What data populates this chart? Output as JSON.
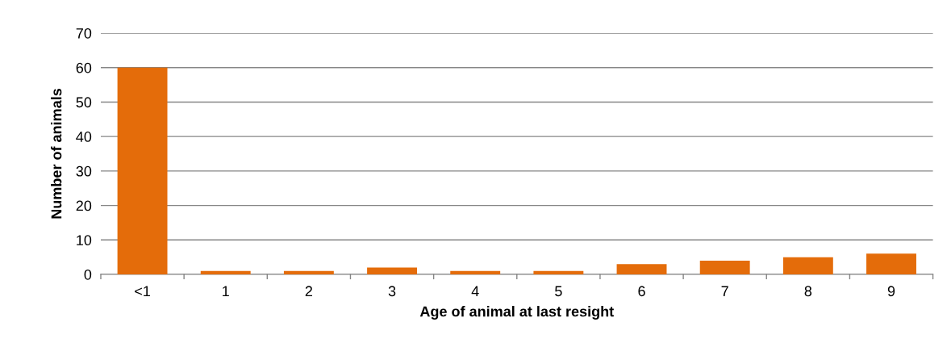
{
  "chart_data": {
    "type": "bar",
    "xlabel": "Age of animal at last resight",
    "ylabel": "Number of animals",
    "categories": [
      "<1",
      "1",
      "2",
      "3",
      "4",
      "5",
      "6",
      "7",
      "8",
      "9"
    ],
    "values": [
      60,
      1,
      1,
      2,
      1,
      1,
      3,
      4,
      5,
      6
    ],
    "color": "#e46c0a",
    "ylim": [
      0,
      70
    ],
    "yticks": [
      0,
      10,
      20,
      30,
      40,
      50,
      60,
      70
    ],
    "grid": "y"
  }
}
